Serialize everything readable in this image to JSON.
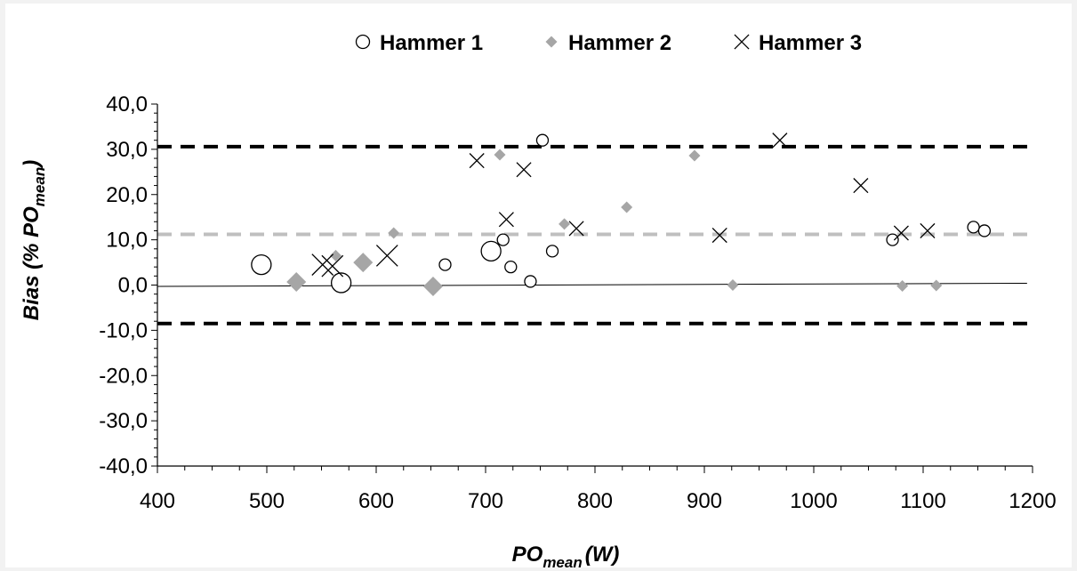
{
  "chart_data": {
    "type": "scatter",
    "title": "",
    "xlabel": "PO",
    "xlabel_sub": "mean",
    "xlabel_unit": "(W)",
    "ylabel": "Bias (% PO",
    "ylabel_sub": "mean",
    "ylabel_end": ")",
    "xlim": [
      400,
      1200
    ],
    "ylim": [
      -40,
      40
    ],
    "x_ticks": [
      "400",
      "500",
      "600",
      "700",
      "800",
      "900",
      "1000",
      "1100",
      "1200"
    ],
    "y_ticks": [
      "40,0",
      "30,0",
      "20,0",
      "10,0",
      "0,0",
      "-10,0",
      "-20,0",
      "-30,0",
      "-40,0"
    ],
    "legend_position": "top",
    "series": [
      {
        "name": "Hammer 1",
        "marker": "open-circle",
        "color": "#000000",
        "points": [
          {
            "x": 495,
            "y": 4.5,
            "size": "large"
          },
          {
            "x": 568,
            "y": 0.5,
            "size": "large"
          },
          {
            "x": 663,
            "y": 4.5,
            "size": "small"
          },
          {
            "x": 705,
            "y": 7.5,
            "size": "large"
          },
          {
            "x": 716,
            "y": 10.0,
            "size": "small"
          },
          {
            "x": 723,
            "y": 4.0,
            "size": "small"
          },
          {
            "x": 741,
            "y": 0.8,
            "size": "small"
          },
          {
            "x": 752,
            "y": 32.0,
            "size": "small"
          },
          {
            "x": 761,
            "y": 7.5,
            "size": "small"
          },
          {
            "x": 1072,
            "y": 10.0,
            "size": "small"
          },
          {
            "x": 1146,
            "y": 12.8,
            "size": "small"
          },
          {
            "x": 1156,
            "y": 12.0,
            "size": "small"
          }
        ]
      },
      {
        "name": "Hammer 2",
        "marker": "diamond",
        "color": "#a6a6a6",
        "points": [
          {
            "x": 527,
            "y": 0.7,
            "size": "large"
          },
          {
            "x": 563,
            "y": 6.5,
            "size": "small"
          },
          {
            "x": 588,
            "y": 5.0,
            "size": "large"
          },
          {
            "x": 616,
            "y": 11.5,
            "size": "small"
          },
          {
            "x": 652,
            "y": -0.3,
            "size": "large"
          },
          {
            "x": 713,
            "y": 28.8,
            "size": "small"
          },
          {
            "x": 772,
            "y": 13.5,
            "size": "small"
          },
          {
            "x": 829,
            "y": 17.2,
            "size": "small"
          },
          {
            "x": 891,
            "y": 28.6,
            "size": "small"
          },
          {
            "x": 926,
            "y": 0.0,
            "size": "small"
          },
          {
            "x": 1081,
            "y": -0.2,
            "size": "small"
          },
          {
            "x": 1112,
            "y": -0.1,
            "size": "small"
          }
        ]
      },
      {
        "name": "Hammer 3",
        "marker": "x",
        "color": "#000000",
        "points": [
          {
            "x": 551,
            "y": 4.5,
            "size": "large"
          },
          {
            "x": 560,
            "y": 4.2,
            "size": "large"
          },
          {
            "x": 610,
            "y": 6.5,
            "size": "large"
          },
          {
            "x": 692,
            "y": 27.5,
            "size": "small"
          },
          {
            "x": 719,
            "y": 14.5,
            "size": "small"
          },
          {
            "x": 735,
            "y": 25.5,
            "size": "small"
          },
          {
            "x": 783,
            "y": 12.5,
            "size": "small"
          },
          {
            "x": 914,
            "y": 11.0,
            "size": "small"
          },
          {
            "x": 969,
            "y": 32.0,
            "size": "small"
          },
          {
            "x": 1043,
            "y": 22.0,
            "size": "small"
          },
          {
            "x": 1080,
            "y": 11.5,
            "size": "small"
          },
          {
            "x": 1104,
            "y": 12.0,
            "size": "small"
          }
        ]
      }
    ],
    "reference_lines": [
      {
        "name": "upper limit of agreement",
        "y": 30.6,
        "style": "dashed",
        "color": "#000000"
      },
      {
        "name": "mean bias",
        "y": 11.2,
        "style": "dashed",
        "color": "#bfbfbf"
      },
      {
        "name": "lower limit of agreement",
        "y": -8.5,
        "style": "dashed",
        "color": "#000000"
      }
    ],
    "trend_line": {
      "x": [
        400,
        1195
      ],
      "y": [
        -0.3,
        0.4
      ],
      "color": "#000000"
    }
  }
}
